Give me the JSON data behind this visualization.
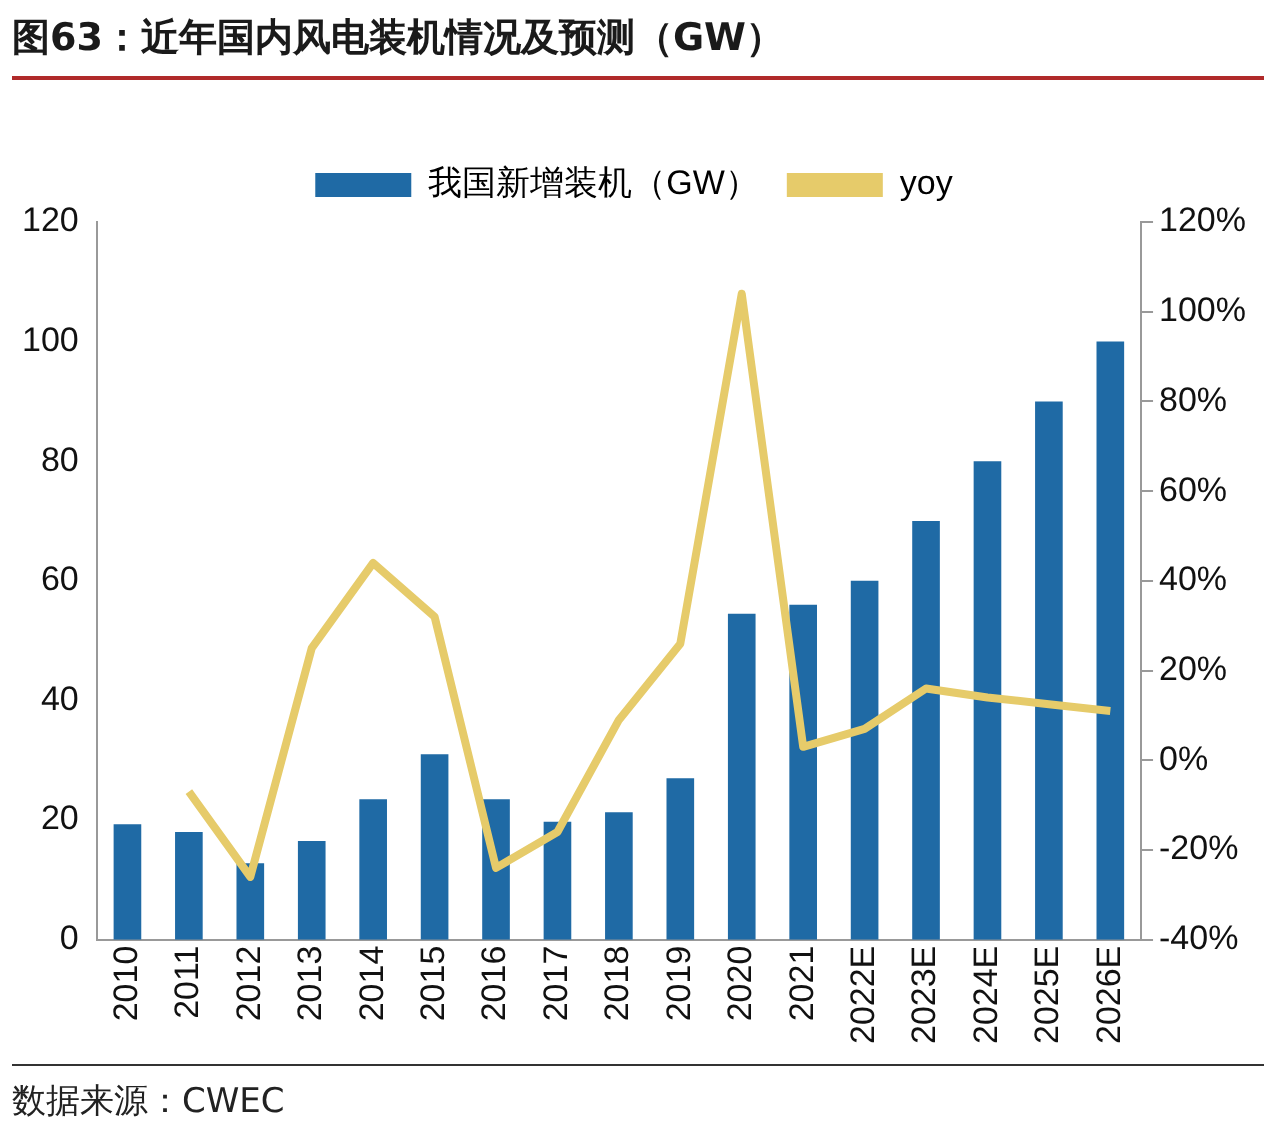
{
  "chart_data": {
    "type": "bar",
    "title": "图63：近年国内风电装机情况及预测（GW）",
    "annotations": [
      "数据来源：CWEC"
    ],
    "categories": [
      "2010",
      "2011",
      "2012",
      "2013",
      "2014",
      "2015",
      "2016",
      "2017",
      "2018",
      "2019",
      "2020",
      "2021",
      "2022E",
      "2023E",
      "2024E",
      "2025E",
      "2026E"
    ],
    "series": [
      {
        "name": "我国新增装机（GW）",
        "color": "#1f6aa5",
        "values": [
          19.3,
          18,
          12.8,
          16.5,
          23.5,
          31,
          23.5,
          19.7,
          21.3,
          27,
          54.5,
          56,
          60,
          70,
          80,
          90,
          100
        ]
      },
      {
        "name": "yoy",
        "type": "line",
        "axis": "y2",
        "color": "#e6cb6a",
        "values": [
          null,
          -7,
          -26,
          25,
          44,
          32,
          -24,
          -16,
          9,
          26,
          104,
          3,
          7,
          16,
          14,
          12.5,
          11
        ]
      }
    ],
    "ylim": [
      0,
      120
    ],
    "yticks": [
      0,
      20,
      40,
      60,
      80,
      100,
      120
    ],
    "y2lim": [
      -40,
      120
    ],
    "y2ticks": [
      {
        "value": -40,
        "label": "-40%"
      },
      {
        "value": -20,
        "label": "-20%"
      },
      {
        "value": 0,
        "label": "0%"
      },
      {
        "value": 20,
        "label": "20%"
      },
      {
        "value": 40,
        "label": "40%"
      },
      {
        "value": 60,
        "label": "60%"
      },
      {
        "value": 80,
        "label": "80%"
      },
      {
        "value": 100,
        "label": "100%"
      },
      {
        "value": 120,
        "label": "120%"
      }
    ],
    "grid": false,
    "legend": "top",
    "marker": "none",
    "line_style": "solid"
  }
}
